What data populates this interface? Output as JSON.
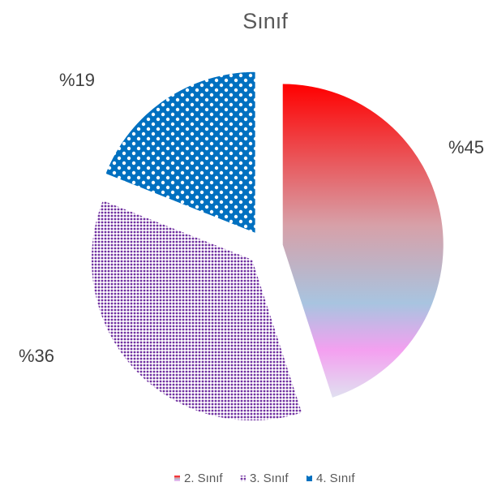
{
  "chart_data": {
    "type": "pie",
    "title": "Sınıf",
    "categories": [
      "2. Sınıf",
      "3. Sınıf",
      "4. Sınıf"
    ],
    "values": [
      45,
      36,
      19
    ],
    "value_labels": [
      "%45",
      "%36",
      "%19"
    ],
    "colors": [
      "#ff0000",
      "#7030a0",
      "#0070c0"
    ],
    "exploded": true
  }
}
